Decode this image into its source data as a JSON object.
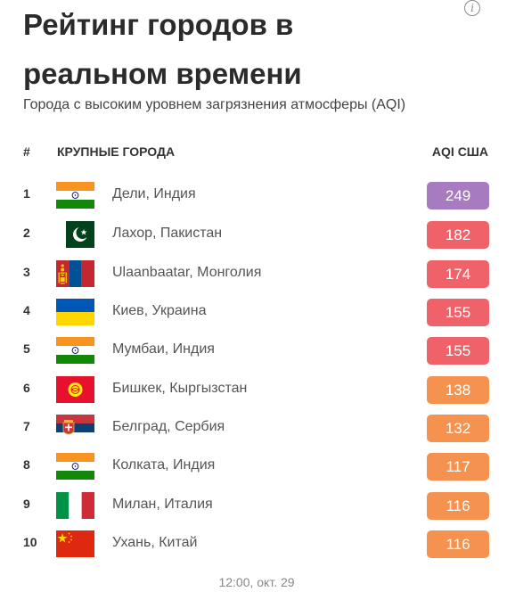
{
  "header": {
    "title": "Рейтинг городов в реальном времени",
    "subtitle": "Города с высоким уровнем загрязнения атмосферы (AQI)"
  },
  "table": {
    "col_rank": "#",
    "col_city": "КРУПНЫЕ ГОРОДА",
    "col_aqi": "AQI США",
    "rows": [
      {
        "rank": "1",
        "city": "Дели, Индия",
        "aqi": "249",
        "flag": "india-flag-icon",
        "color": "#a77bc0"
      },
      {
        "rank": "2",
        "city": "Лахор, Пакистан",
        "aqi": "182",
        "flag": "pakistan-flag-icon",
        "color": "#f0626a"
      },
      {
        "rank": "3",
        "city": "Ulaanbaatar, Монголия",
        "aqi": "174",
        "flag": "mongolia-flag-icon",
        "color": "#f0626a"
      },
      {
        "rank": "4",
        "city": "Киев, Украина",
        "aqi": "155",
        "flag": "ukraine-flag-icon",
        "color": "#f0626a"
      },
      {
        "rank": "5",
        "city": "Мумбаи, Индия",
        "aqi": "155",
        "flag": "india-flag-icon",
        "color": "#f0626a"
      },
      {
        "rank": "6",
        "city": "Бишкек, Кыргызстан",
        "aqi": "138",
        "flag": "kyrgyzstan-flag-icon",
        "color": "#f5924f"
      },
      {
        "rank": "7",
        "city": "Белград, Сербия",
        "aqi": "132",
        "flag": "serbia-flag-icon",
        "color": "#f5924f"
      },
      {
        "rank": "8",
        "city": "Колката, Индия",
        "aqi": "117",
        "flag": "india-flag-icon",
        "color": "#f5924f"
      },
      {
        "rank": "9",
        "city": "Милан, Италия",
        "aqi": "116",
        "flag": "italy-flag-icon",
        "color": "#f5924f"
      },
      {
        "rank": "10",
        "city": "Ухань, Китай",
        "aqi": "116",
        "flag": "china-flag-icon",
        "color": "#f5924f"
      }
    ]
  },
  "footer": {
    "timestamp": "12:00, окт. 29"
  }
}
